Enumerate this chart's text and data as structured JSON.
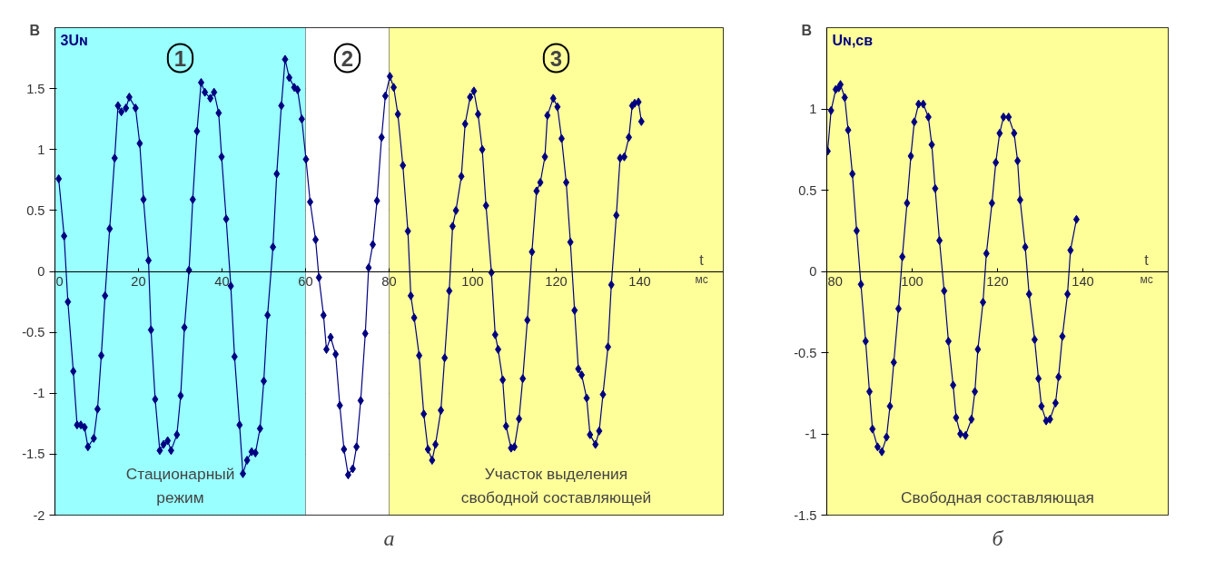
{
  "chart_data": [
    {
      "type": "line",
      "ylabel": "В",
      "xlabel": "t",
      "annotations": [
        "а",
        "мс",
        {
          "text": "1",
          "x": 30,
          "y": 1.75
        },
        {
          "text": "2",
          "x": 70,
          "y": 1.75
        },
        {
          "text": "3",
          "x": 120,
          "y": 1.75
        }
      ],
      "xlim": [
        0,
        160
      ],
      "xticks": [
        0,
        20,
        40,
        60,
        80,
        100,
        120,
        140
      ],
      "ylim": [
        -2,
        2
      ],
      "yticks": [
        -2,
        -1.5,
        -1,
        -0.5,
        0,
        0.5,
        1,
        1.5
      ],
      "grid": "y",
      "marker": "diamond",
      "line_style": "solid",
      "bands": [
        {
          "axis": "x",
          "from": 0,
          "to": 60,
          "label": "Стационарный\nрежим",
          "color": "#99ffff"
        },
        {
          "axis": "x",
          "from": 60,
          "to": 80,
          "color": "#ffffff"
        },
        {
          "axis": "x",
          "from": 80,
          "to": 160,
          "label": "Участок выделения\nсвободной составляющей",
          "color": "#ffff99"
        }
      ],
      "series": [
        {
          "name": "3Uɴ",
          "color": "#000080",
          "x": [
            0.9,
            2.2,
            3.1,
            4.4,
            5.3,
            6.2,
            7.1,
            7.9,
            9.3,
            10.2,
            11.1,
            12,
            13.1,
            14.3,
            15.1,
            15.9,
            17,
            17.8,
            19.3,
            20.3,
            21.2,
            22.4,
            23,
            24,
            25.1,
            26,
            27,
            27.8,
            29.2,
            30.1,
            31,
            32.1,
            33,
            34,
            35,
            35.9,
            37.2,
            38.1,
            39.2,
            39.9,
            41,
            42.1,
            43,
            44.2,
            45,
            46,
            47.1,
            48,
            49.1,
            50,
            50.9,
            52.2,
            53.1,
            54.2,
            55.1,
            56.1,
            57.3,
            58.1,
            59.1,
            60.1,
            61.1,
            62.4,
            63.2,
            64.3,
            65,
            66,
            67.2,
            68.2,
            69.2,
            70.2,
            71.3,
            72.2,
            73.2,
            74.3,
            75.1,
            76.1,
            77.1,
            78.2,
            79.1,
            80.2,
            81.1,
            82.1,
            83.3,
            84.5,
            85.2,
            86,
            87.2,
            88.3,
            89.3,
            90.3,
            91.1,
            92.4,
            93.3,
            94.4,
            95.2,
            96,
            97.3,
            98.2,
            99.4,
            100.3,
            101.3,
            102.3,
            103.2,
            104.5,
            105.4,
            106.1,
            107.2,
            108,
            109.2,
            110,
            111.1,
            112,
            113.1,
            114.2,
            115.3,
            116.2,
            117.3,
            117.9,
            119.3,
            120.3,
            121.3,
            122.4,
            123.4,
            124.4,
            125.3,
            126.1,
            127.3,
            128.1,
            129.4,
            130.3,
            131.2,
            132.4,
            133.2,
            134.4,
            135.3,
            136.3,
            137.4,
            138.2,
            138.8,
            139.7,
            140.4
          ],
          "values": [
            0.76,
            0.29,
            -0.25,
            -0.82,
            -1.26,
            -1.26,
            -1.28,
            -1.44,
            -1.37,
            -1.13,
            -0.69,
            -0.2,
            0.35,
            0.93,
            1.36,
            1.31,
            1.34,
            1.43,
            1.34,
            1.05,
            0.59,
            0.09,
            -0.48,
            -1.05,
            -1.47,
            -1.42,
            -1.39,
            -1.47,
            -1.34,
            -1.02,
            -0.46,
            0.01,
            0.59,
            1.15,
            1.55,
            1.47,
            1.42,
            1.47,
            1.3,
            0.94,
            0.43,
            -0.12,
            -0.7,
            -1.26,
            -1.66,
            -1.55,
            -1.48,
            -1.49,
            -1.29,
            -0.9,
            -0.36,
            0.2,
            0.8,
            1.36,
            1.74,
            1.59,
            1.51,
            1.49,
            1.25,
            0.92,
            0.57,
            0.26,
            -0.05,
            -0.36,
            -0.64,
            -0.54,
            -0.68,
            -1.1,
            -1.46,
            -1.67,
            -1.62,
            -1.44,
            -1.06,
            -0.51,
            0.03,
            0.22,
            0.58,
            1.1,
            1.44,
            1.6,
            1.51,
            1.29,
            0.87,
            0.33,
            -0.2,
            -0.38,
            -0.69,
            -1.17,
            -1.46,
            -1.55,
            -1.42,
            -1.14,
            -0.71,
            -0.16,
            0.37,
            0.5,
            0.78,
            1.21,
            1.43,
            1.48,
            1.29,
            1.0,
            0.54,
            -0.01,
            -0.52,
            -0.64,
            -0.89,
            -1.27,
            -1.45,
            -1.44,
            -1.21,
            -0.88,
            -0.4,
            0.16,
            0.66,
            0.73,
            0.94,
            1.28,
            1.42,
            1.35,
            1.09,
            0.73,
            0.24,
            -0.32,
            -0.8,
            -0.85,
            -1.04,
            -1.34,
            -1.42,
            -1.31,
            -1.01,
            -0.62,
            -0.11,
            0.46,
            0.93,
            0.94,
            1.1,
            1.36,
            1.38,
            1.39,
            1.23
          ]
        }
      ]
    },
    {
      "type": "line",
      "ylabel": "В",
      "xlabel": "t",
      "annotations": [
        "б",
        "мс"
      ],
      "xlim": [
        80,
        160
      ],
      "xticks": [
        80,
        100,
        120,
        140
      ],
      "ylim": [
        -1.5,
        1.5
      ],
      "yticks": [
        -1.5,
        -1,
        -0.5,
        0,
        0.5,
        1
      ],
      "grid": "y",
      "marker": "diamond",
      "line_style": "solid",
      "bands": [
        {
          "axis": "x",
          "from": 80,
          "to": 160,
          "label": "Свободная составляющая",
          "color": "#ffff99"
        }
      ],
      "series": [
        {
          "name": "Uɴ,св",
          "color": "#000080",
          "x": [
            80.2,
            81,
            82.1,
            82.8,
            83.2,
            84.2,
            85,
            86,
            87,
            88,
            89.1,
            90,
            90.7,
            91.9,
            92.9,
            94,
            94.8,
            95.7,
            96.8,
            97.7,
            98.8,
            99.7,
            100.5,
            101.5,
            102.6,
            103.8,
            104.6,
            105.4,
            106.4,
            107.5,
            108.5,
            109.6,
            110.3,
            111.3,
            112.5,
            113.9,
            114.7,
            115.4,
            116.6,
            117.4,
            118.7,
            119.6,
            120.5,
            121.4,
            122.6,
            123.9,
            124.7,
            125.3,
            126.5,
            127.4,
            128.7,
            129.6,
            130.3,
            131.4,
            132.3,
            133.6,
            134.3,
            135.2,
            136.4,
            137.1,
            138.5
          ],
          "values": [
            0.74,
            0.99,
            1.12,
            1.13,
            1.15,
            1.07,
            0.87,
            0.6,
            0.25,
            -0.08,
            -0.43,
            -0.74,
            -0.97,
            -1.08,
            -1.11,
            -1.02,
            -0.83,
            -0.56,
            -0.23,
            0.09,
            0.42,
            0.71,
            0.92,
            1.03,
            1.03,
            0.95,
            0.78,
            0.51,
            0.19,
            -0.12,
            -0.43,
            -0.7,
            -0.9,
            -1.0,
            -1.01,
            -0.91,
            -0.74,
            -0.48,
            -0.19,
            0.11,
            0.42,
            0.67,
            0.85,
            0.95,
            0.95,
            0.85,
            0.68,
            0.44,
            0.15,
            -0.14,
            -0.42,
            -0.66,
            -0.83,
            -0.92,
            -0.91,
            -0.81,
            -0.65,
            -0.4,
            -0.14,
            0.13,
            0.32
          ]
        }
      ]
    }
  ]
}
